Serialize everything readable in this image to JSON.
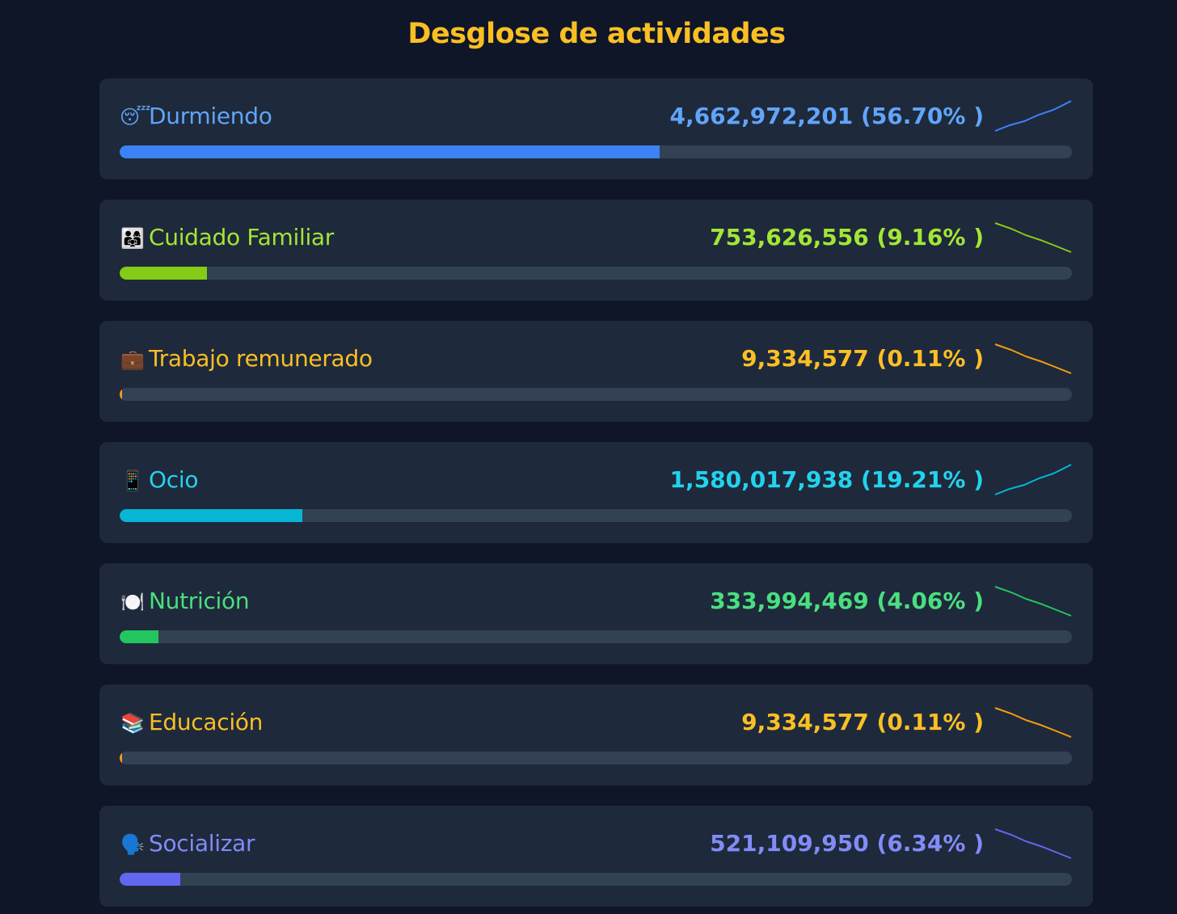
{
  "title": "Desglose de actividades",
  "activities": [
    {
      "emoji": "😴",
      "icon": "sleeping-face-icon",
      "name": "Durmiendo",
      "count": "4,662,972,201",
      "percent": "(56.70% )",
      "share": 56.7,
      "color": "#3b82f6",
      "text_color": "#60a5fa",
      "trend": "up"
    },
    {
      "emoji": "👨‍👩‍👧",
      "icon": "family-icon",
      "name": "Cuidado Familiar",
      "count": "753,626,556",
      "percent": "(9.16% )",
      "share": 9.16,
      "color": "#84cc16",
      "text_color": "#a3e635",
      "trend": "down"
    },
    {
      "emoji": "💼",
      "icon": "briefcase-icon",
      "name": "Trabajo remunerado",
      "count": "9,334,577",
      "percent": "(0.11% )",
      "share": 0.11,
      "color": "#f59e0b",
      "text_color": "#fbbf24",
      "trend": "down"
    },
    {
      "emoji": "📱",
      "icon": "mobile-phone-icon",
      "name": "Ocio",
      "count": "1,580,017,938",
      "percent": "(19.21% )",
      "share": 19.21,
      "color": "#06b6d4",
      "text_color": "#22d3ee",
      "trend": "up"
    },
    {
      "emoji": "🍽️",
      "icon": "plate-cutlery-icon",
      "name": "Nutrición",
      "count": "333,994,469",
      "percent": "(4.06% )",
      "share": 4.06,
      "color": "#22c55e",
      "text_color": "#4ade80",
      "trend": "down"
    },
    {
      "emoji": "📚",
      "icon": "books-icon",
      "name": "Educación",
      "count": "9,334,577",
      "percent": "(0.11% )",
      "share": 0.11,
      "color": "#f59e0b",
      "text_color": "#fbbf24",
      "trend": "down"
    },
    {
      "emoji": "🗣️",
      "icon": "speaking-head-icon",
      "name": "Socializar",
      "count": "521,109,950",
      "percent": "(6.34% )",
      "share": 6.34,
      "color": "#6366f1",
      "text_color": "#818cf8",
      "trend": "down"
    }
  ]
}
